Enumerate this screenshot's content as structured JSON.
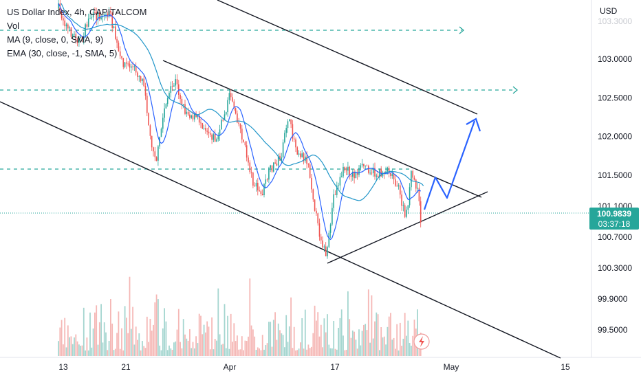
{
  "legend": {
    "title": "US Dollar Index, 4h, CAPITALCOM",
    "vol": "Vol",
    "ma": "MA (9, close, 0, SMA, 9)",
    "ema": "EMA (30, close, -1, SMA, 5)"
  },
  "axis": {
    "currency": "USD",
    "price_label": "100.9839",
    "countdown": "03:37:18",
    "y_ticks": [
      "103.0000",
      "102.5000",
      "102.0000",
      "101.5000",
      "101.1000",
      "100.7000",
      "100.3000",
      "99.9000",
      "99.5000"
    ],
    "x_ticks": [
      "13",
      "21",
      "Apr",
      "17",
      "May",
      "15"
    ]
  },
  "colors": {
    "up": "#26a69a",
    "down": "#ef5350",
    "ma": "#2962ff",
    "ema": "#2196c9",
    "hline": "#26a69a",
    "arrow": "#2962ff",
    "price_bg": "#26a69a"
  },
  "icons": [
    "lightning-icon"
  ],
  "chart_data": {
    "type": "candlestick",
    "title": "US Dollar Index, 4h, CAPITALCOM",
    "ylabel": "USD",
    "ylim": [
      99.2,
      103.5
    ],
    "horizontal_levels": [
      103.35,
      102.62,
      101.55,
      100.98
    ],
    "last_price": 100.9839,
    "anchors": [
      [
        "13",
        103.2
      ],
      [
        "21",
        102.9
      ],
      [
        "21",
        101.6
      ],
      [
        "Apr",
        102.5
      ],
      [
        "Apr",
        101.1
      ],
      [
        "Apr",
        101.7
      ],
      [
        "Apr",
        102.3
      ],
      [
        "Apr",
        101.7
      ],
      [
        "17",
        100.35
      ],
      [
        "17",
        101.7
      ],
      [
        "17",
        101.4
      ],
      [
        "May",
        101.0
      ]
    ]
  }
}
